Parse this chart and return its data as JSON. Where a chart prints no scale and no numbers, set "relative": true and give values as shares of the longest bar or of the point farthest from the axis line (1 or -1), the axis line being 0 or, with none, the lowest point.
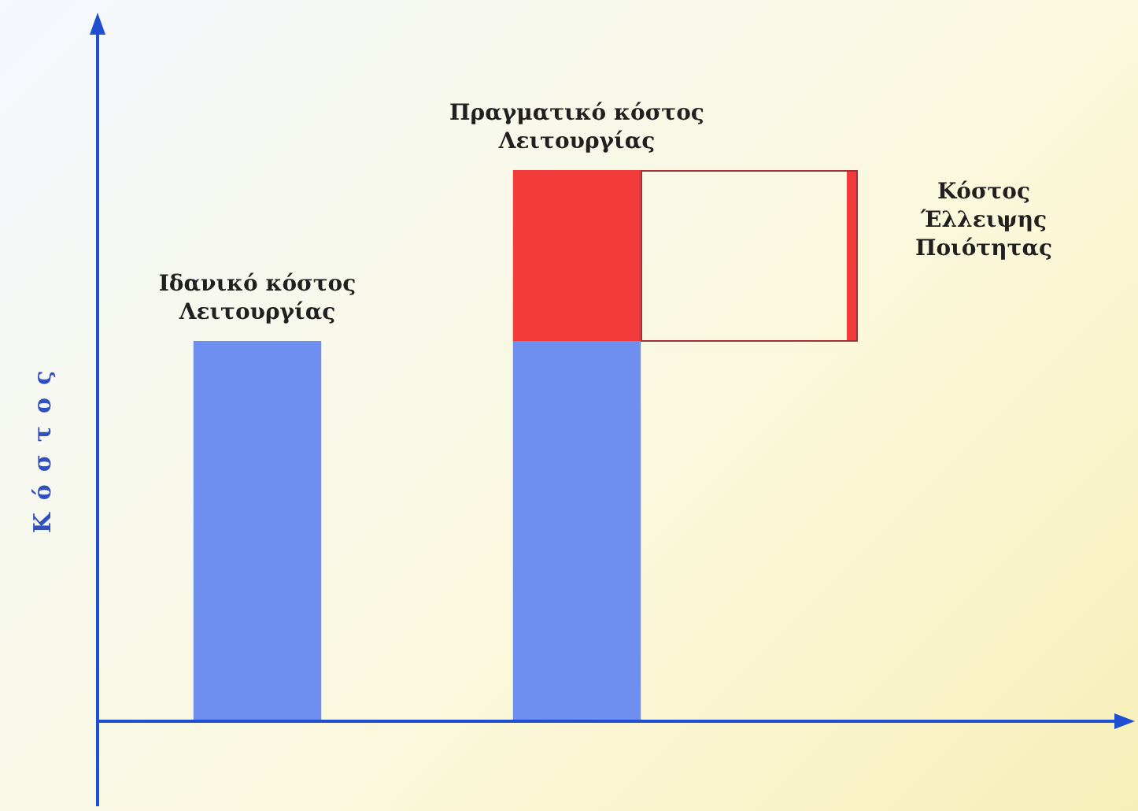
{
  "chart_data": {
    "type": "bar",
    "relative": true,
    "stacked": true,
    "ylabel": "Κόστος",
    "categories": [
      null,
      null
    ],
    "series": [
      {
        "color": "#6f8ff0",
        "values": [
          0.69,
          0.69
        ]
      },
      {
        "color": "#f23c3c",
        "values": [
          null,
          0.31
        ]
      }
    ],
    "annotations": [
      "Ιδανικό κόστος\nΛειτουργίας",
      "Πραγματικό κόστος\nΛειτουργίας",
      "Κόστος\nΈλλειψης\nΠοιότητας"
    ],
    "legend": false
  }
}
